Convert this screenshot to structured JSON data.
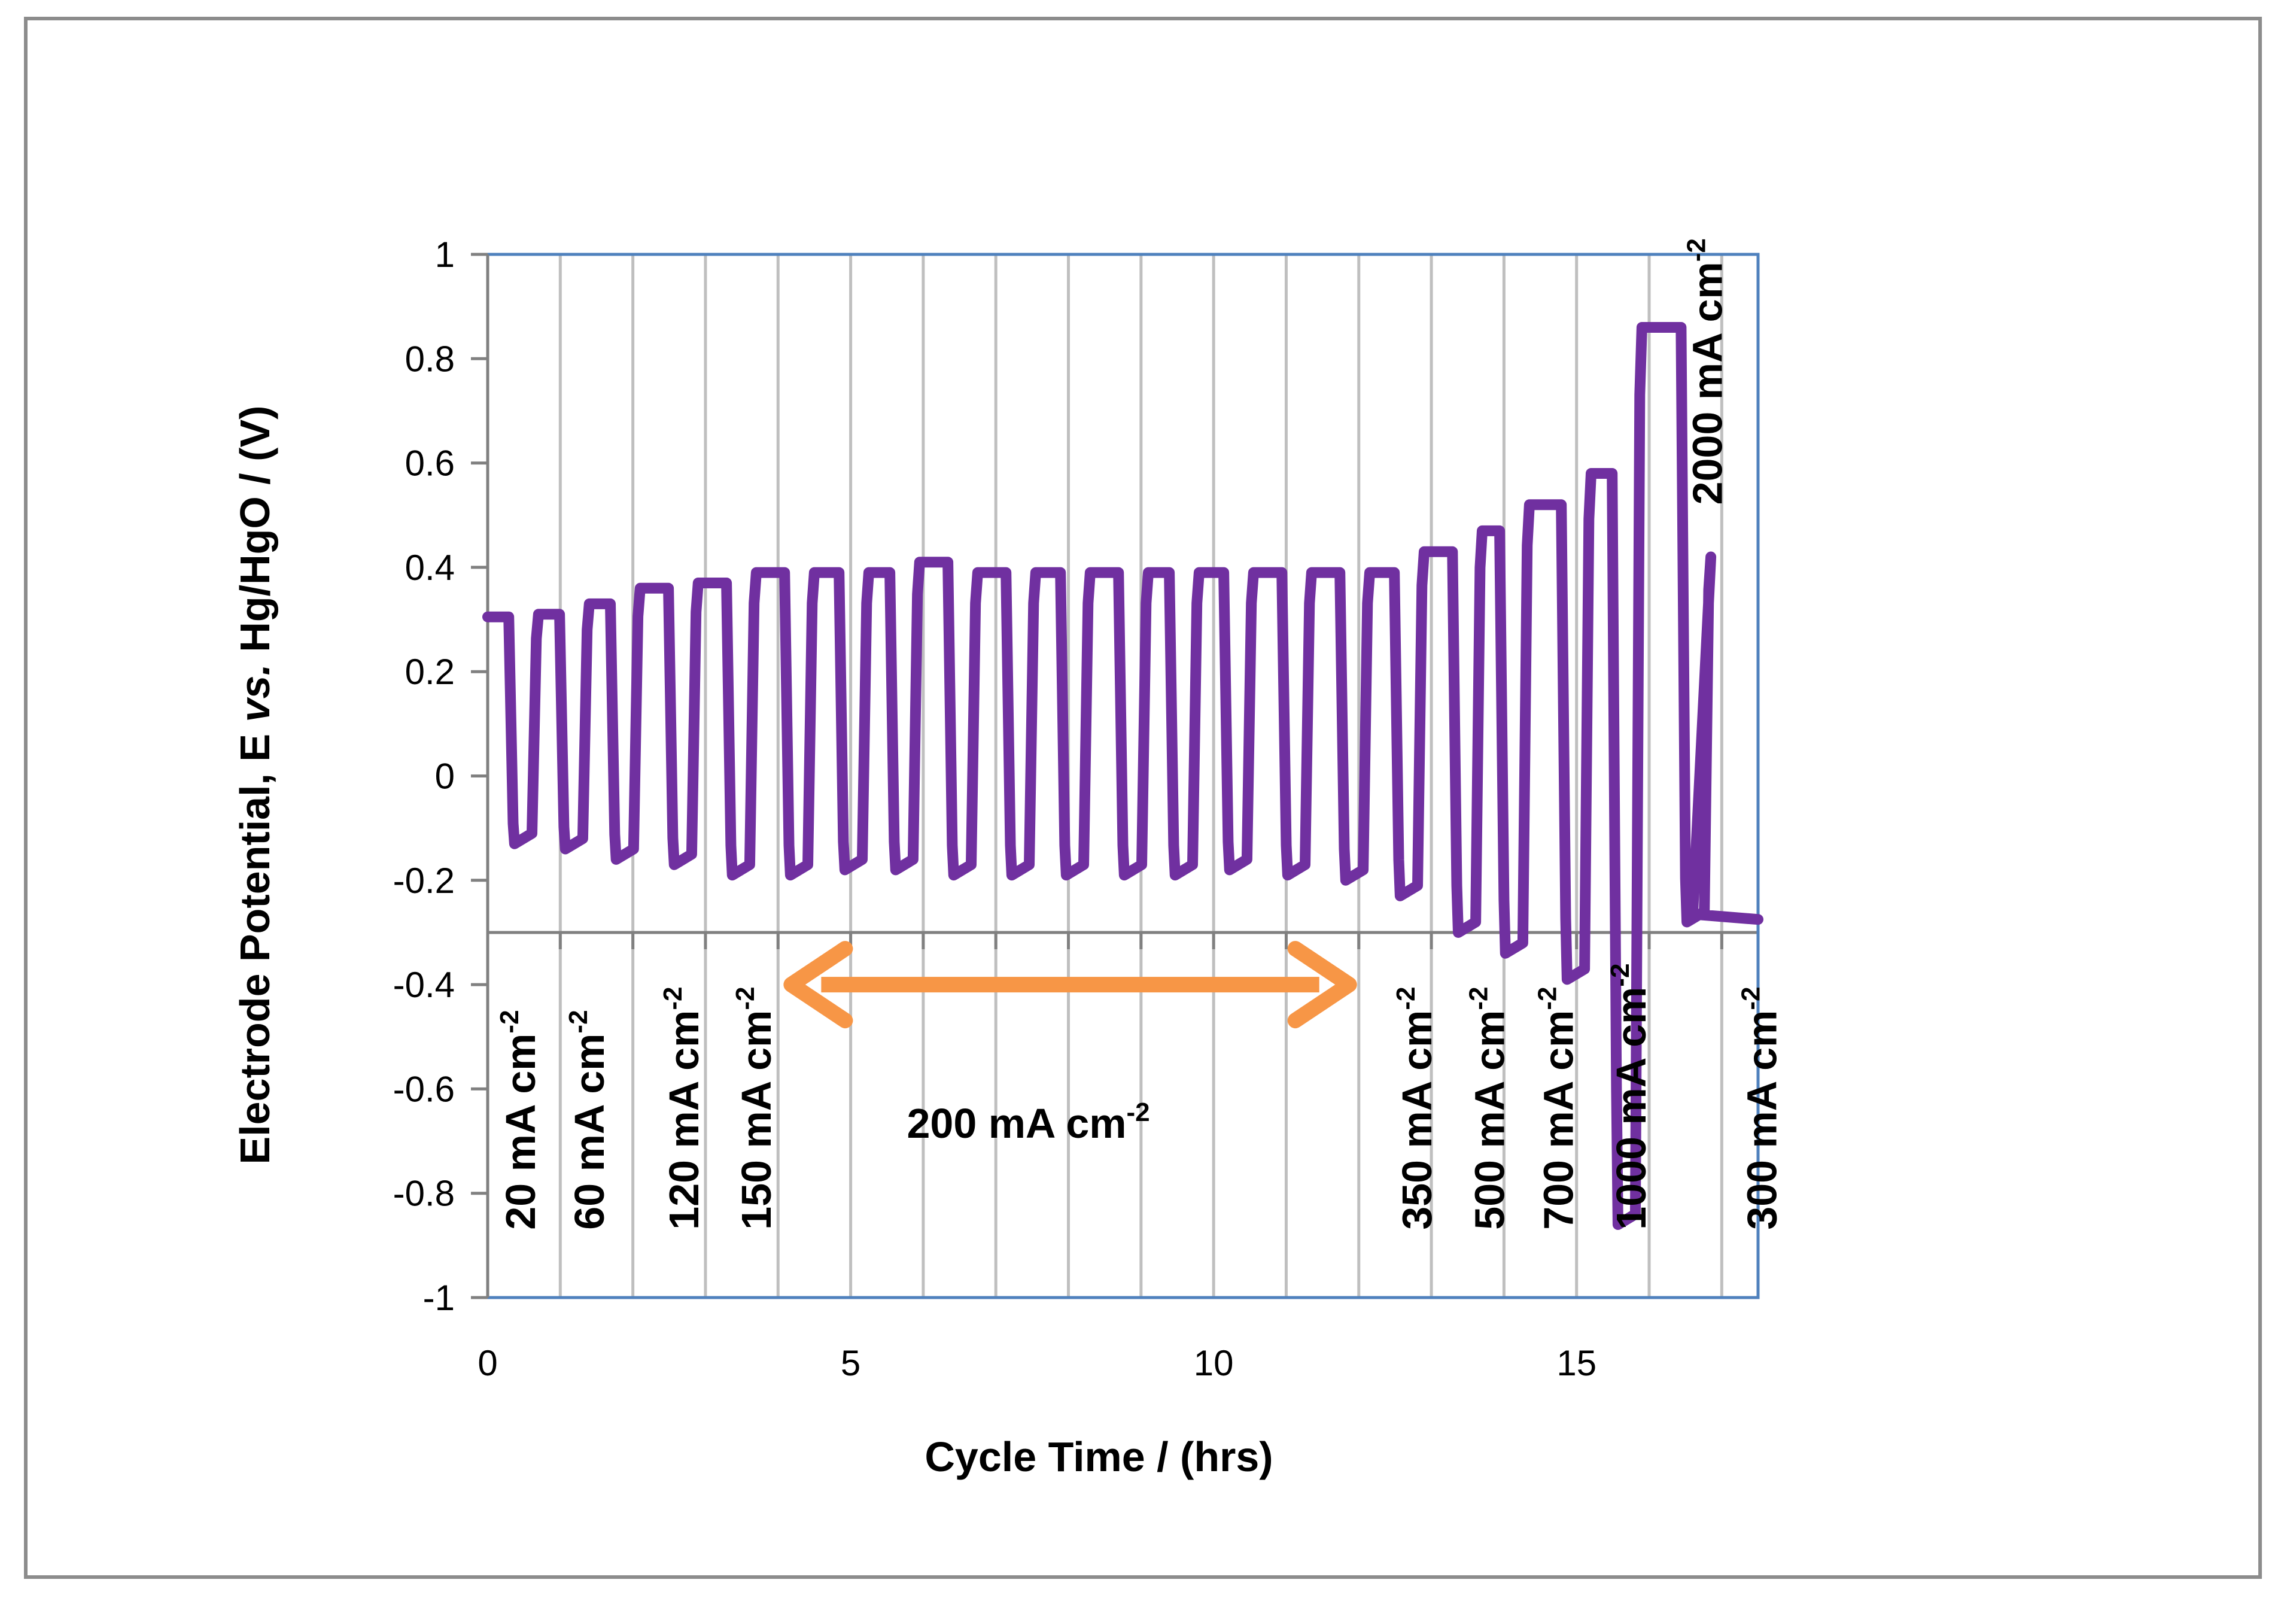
{
  "chart_data": {
    "type": "line",
    "title": "",
    "xlabel": "Cycle Time / (hrs)",
    "ylabel": "Electrode  Potential, E vs. Hg/HgO / (V)",
    "xlim": [
      0,
      17.5
    ],
    "ylim": [
      -1,
      1
    ],
    "xticks": [
      "0",
      "5",
      "10",
      "15"
    ],
    "yticks": [
      "1",
      "0.8",
      "0.6",
      "0.4",
      "0.2",
      "0",
      "-0.2",
      "-0.4",
      "-0.6",
      "-0.8",
      "-1"
    ],
    "grid_x": true,
    "grid_y": false,
    "line_color": "#7030a0",
    "arrow_color": "#f79646",
    "axis_box_color": "#4f81bd",
    "series": [
      {
        "name": "Electrode potential",
        "cycles": [
          {
            "t": 0.35,
            "ox": 0.31,
            "red": -0.13
          },
          {
            "t": 1.05,
            "ox": 0.33,
            "red": -0.14
          },
          {
            "t": 1.75,
            "ox": 0.36,
            "red": -0.16
          },
          {
            "t": 2.55,
            "ox": 0.37,
            "red": -0.17
          },
          {
            "t": 3.35,
            "ox": 0.39,
            "red": -0.19
          },
          {
            "t": 4.15,
            "ox": 0.39,
            "red": -0.19
          },
          {
            "t": 4.9,
            "ox": 0.39,
            "red": -0.18
          },
          {
            "t": 5.6,
            "ox": 0.41,
            "red": -0.18
          },
          {
            "t": 6.4,
            "ox": 0.39,
            "red": -0.19
          },
          {
            "t": 7.2,
            "ox": 0.39,
            "red": -0.19
          },
          {
            "t": 7.95,
            "ox": 0.39,
            "red": -0.19
          },
          {
            "t": 8.75,
            "ox": 0.39,
            "red": -0.19
          },
          {
            "t": 9.45,
            "ox": 0.39,
            "red": -0.19
          },
          {
            "t": 10.2,
            "ox": 0.39,
            "red": -0.18
          },
          {
            "t": 11.0,
            "ox": 0.39,
            "red": -0.19
          },
          {
            "t": 11.8,
            "ox": 0.39,
            "red": -0.2
          },
          {
            "t": 12.55,
            "ox": 0.43,
            "red": -0.23
          },
          {
            "t": 13.35,
            "ox": 0.47,
            "red": -0.3
          },
          {
            "t": 14.0,
            "ox": 0.52,
            "red": -0.34
          },
          {
            "t": 14.85,
            "ox": 0.58,
            "red": -0.39
          },
          {
            "t": 15.55,
            "ox": 0.86,
            "red": -0.86
          },
          {
            "t": 16.5,
            "ox": 0.42,
            "red": -0.28
          }
        ],
        "start": {
          "t": 0.0,
          "y": 0.305
        },
        "end": {
          "t": 17.5,
          "y": -0.275
        }
      }
    ],
    "annotations": [
      {
        "label": "20 mA cm",
        "sup": "-2",
        "t": 0.65,
        "y": -0.87
      },
      {
        "label": "60 mA cm",
        "sup": "-2",
        "t": 1.6,
        "y": -0.87
      },
      {
        "label": "120 mA cm",
        "sup": "-2",
        "t": 2.9,
        "y": -0.87
      },
      {
        "label": "150 mA cm",
        "sup": "-2",
        "t": 3.9,
        "y": -0.87
      },
      {
        "label": "350 mA cm",
        "sup": "-2",
        "t": 13.0,
        "y": -0.87
      },
      {
        "label": "500 mA cm",
        "sup": "-2",
        "t": 14.0,
        "y": -0.87
      },
      {
        "label": "700 mA cm",
        "sup": "-2",
        "t": 14.95,
        "y": -0.87
      },
      {
        "label": "1000 mA cm",
        "sup": "-2",
        "t": 15.95,
        "y": -0.87
      },
      {
        "label": "300 mA cm",
        "sup": "-2",
        "t": 17.75,
        "y": -0.87
      },
      {
        "label": "2000 mA cm",
        "sup": "-2",
        "t": 17.0,
        "y": 0.52
      }
    ],
    "arrow": {
      "label": "200 mA cm",
      "sup": "-2",
      "x_from": 4.1,
      "x_to": 11.95,
      "y": -0.4,
      "label_y": -0.665
    },
    "reference_line_y": -0.3
  }
}
